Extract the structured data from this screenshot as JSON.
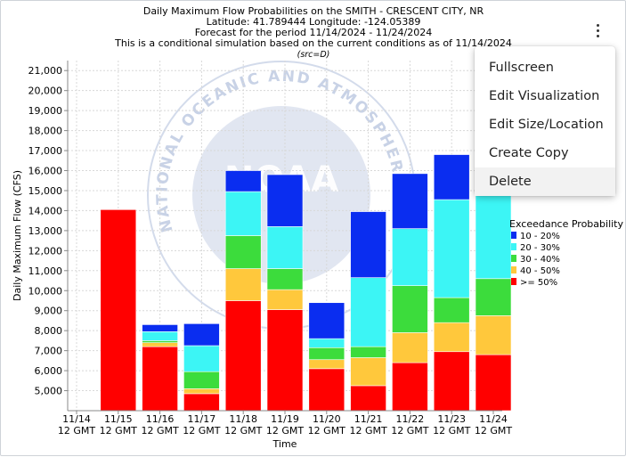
{
  "chart_data": {
    "type": "bar",
    "stacked": true,
    "title_lines": [
      "Daily Maximum Flow Probabilities on the SMITH - CRESCENT CITY, NR",
      "Latitude: 41.789444 Longitude: -124.05389",
      "Forecast for the period 11/14/2024 - 11/24/2024",
      "This is a conditional simulation based on the current conditions as of 11/14/2024"
    ],
    "source_note": "(src=D)",
    "xlabel": "Time",
    "ylabel": "Daily Maximum Flow (CFS)",
    "ylim": [
      4000,
      21500
    ],
    "y_ticks": [
      5000,
      6000,
      7000,
      8000,
      9000,
      10000,
      11000,
      12000,
      13000,
      14000,
      15000,
      16000,
      17000,
      18000,
      19000,
      20000,
      21000
    ],
    "y_tick_labels": [
      "5,000",
      "6,000",
      "7,000",
      "8,000",
      "9,000",
      "10,000",
      "11,000",
      "12,000",
      "13,000",
      "14,000",
      "15,000",
      "16,000",
      "17,000",
      "18,000",
      "19,000",
      "20,000",
      "21,000"
    ],
    "categories": [
      [
        "11/14",
        "12 GMT"
      ],
      [
        "11/15",
        "12 GMT"
      ],
      [
        "11/16",
        "12 GMT"
      ],
      [
        "11/17",
        "12 GMT"
      ],
      [
        "11/18",
        "12 GMT"
      ],
      [
        "11/19",
        "12 GMT"
      ],
      [
        "11/20",
        "12 GMT"
      ],
      [
        "11/21",
        "12 GMT"
      ],
      [
        "11/22",
        "12 GMT"
      ],
      [
        "11/23",
        "12 GMT"
      ],
      [
        "11/24",
        "12 GMT"
      ]
    ],
    "bars": [
      {
        "day": "11/15",
        "levels": [
          14050
        ]
      },
      {
        "day": "11/16",
        "levels": [
          7200,
          7400,
          7500,
          7950,
          8300
        ]
      },
      {
        "day": "11/17",
        "levels": [
          4850,
          5100,
          5950,
          7250,
          8350
        ]
      },
      {
        "day": "11/18",
        "levels": [
          9500,
          11100,
          12750,
          14950,
          16000
        ]
      },
      {
        "day": "11/19",
        "levels": [
          9050,
          10050,
          11100,
          13200,
          15800
        ]
      },
      {
        "day": "11/20",
        "levels": [
          6100,
          6550,
          7150,
          7600,
          9400
        ]
      },
      {
        "day": "11/21",
        "levels": [
          5250,
          6650,
          7200,
          10650,
          13950
        ]
      },
      {
        "day": "11/22",
        "levels": [
          6400,
          7900,
          10250,
          13100,
          15850
        ]
      },
      {
        "day": "11/23",
        "levels": [
          6950,
          8400,
          9650,
          14550,
          16800
        ]
      },
      {
        "day": "11/24",
        "levels": [
          6800,
          8750,
          10600,
          16400,
          20600
        ]
      }
    ],
    "legend_title": "Exceedance Probability",
    "legend_placement": "right",
    "grid": true,
    "series": [
      {
        "name": ">= 50%",
        "color": "#ff0000"
      },
      {
        "name": "40 - 50%",
        "color": "#ffc83c"
      },
      {
        "name": "30 - 40%",
        "color": "#3cdc3c"
      },
      {
        "name": "20 - 30%",
        "color": "#3cf5f5"
      },
      {
        "name": "10 - 20%",
        "color": "#0a2df0"
      }
    ],
    "legend_order": [
      "10 - 20%",
      "20 - 30%",
      "30 - 40%",
      "40 - 50%",
      ">= 50%"
    ]
  },
  "menu": {
    "items": [
      "Fullscreen",
      "Edit Visualization",
      "Edit Size/Location",
      "Create Copy",
      "Delete"
    ],
    "hovered_item": "Delete"
  },
  "watermark": {
    "lettering": "NATIONAL OCEANIC AND ATMOSPHERIC ADMINISTRATION",
    "logo_text": "NOAA",
    "color": "#c8d2e6"
  }
}
